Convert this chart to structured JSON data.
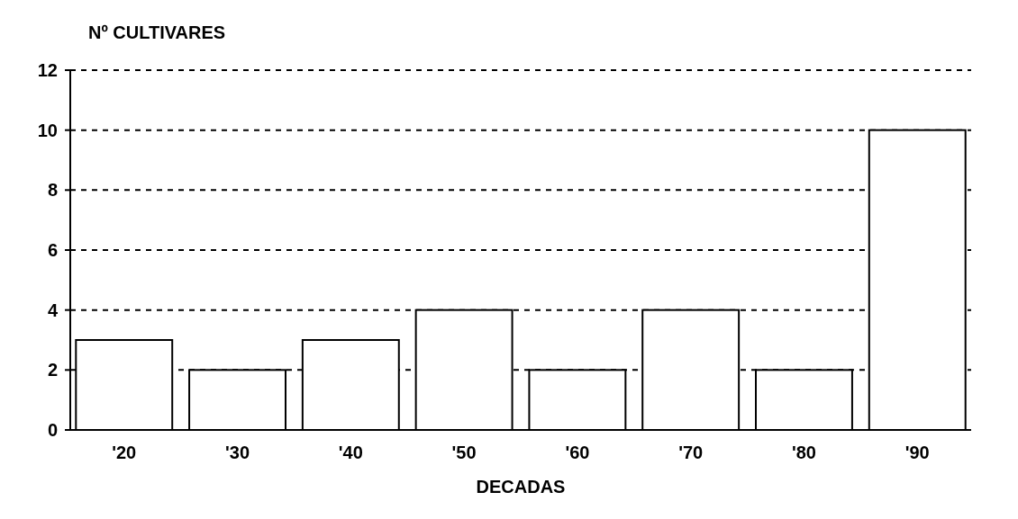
{
  "chart_data": {
    "type": "bar",
    "ylabel": "Nº CULTIVARES",
    "xlabel": "DECADAS",
    "categories": [
      "'20",
      "'30",
      "'40",
      "'50",
      "'60",
      "'70",
      "'80",
      "'90"
    ],
    "values": [
      3,
      2,
      3,
      4,
      2,
      4,
      2,
      10
    ],
    "color": "#ffffff",
    "ylim": [
      0,
      12
    ],
    "yticks": [
      0,
      2,
      4,
      6,
      8,
      10,
      12
    ],
    "grid": "y"
  }
}
